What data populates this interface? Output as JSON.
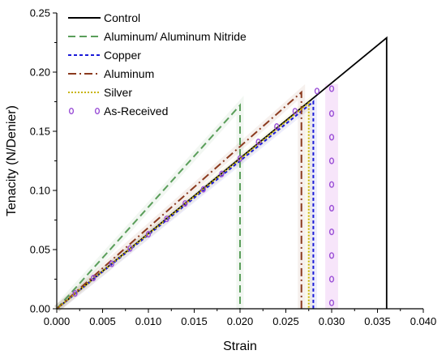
{
  "chart_data": {
    "type": "line",
    "title": "",
    "xlabel": "Strain",
    "ylabel": "Tenacity (N/Denier)",
    "xlim": [
      0,
      0.04
    ],
    "ylim": [
      0,
      0.25
    ],
    "xticks": [
      "0.000",
      "0.005",
      "0.010",
      "0.015",
      "0.020",
      "0.025",
      "0.030",
      "0.035",
      "0.040"
    ],
    "yticks": [
      "0.00",
      "0.05",
      "0.10",
      "0.15",
      "0.20",
      "0.25"
    ],
    "grid": false,
    "legend_position": "top-left",
    "series": [
      {
        "name": "Control",
        "color": "#000000",
        "dash": "solid",
        "points": [
          [
            0,
            0
          ],
          [
            0.036,
            0.229
          ],
          [
            0.036,
            0
          ]
        ]
      },
      {
        "name": "Aluminum/ Aluminum Nitride",
        "color": "#5a9e5a",
        "dash": "dash",
        "points": [
          [
            0,
            0
          ],
          [
            0.02,
            0.172
          ],
          [
            0.02,
            0
          ]
        ]
      },
      {
        "name": "Copper",
        "color": "#1a1ad8",
        "dash": "shortdash",
        "points": [
          [
            0,
            0
          ],
          [
            0.028,
            0.175
          ],
          [
            0.028,
            0
          ]
        ]
      },
      {
        "name": "Aluminum",
        "color": "#8b3a1e",
        "dash": "dashdot",
        "points": [
          [
            0,
            0
          ],
          [
            0.0267,
            0.183
          ],
          [
            0.0267,
            0
          ]
        ]
      },
      {
        "name": "Silver",
        "color": "#c8b400",
        "dash": "dot",
        "points": [
          [
            0,
            0
          ],
          [
            0.0275,
            0.174
          ],
          [
            0.0275,
            0
          ]
        ]
      },
      {
        "name": "As-Received",
        "color": "#9a4fd6",
        "dash": "marker",
        "points": [
          [
            0.002,
            0.013
          ],
          [
            0.004,
            0.026
          ],
          [
            0.006,
            0.038
          ],
          [
            0.008,
            0.051
          ],
          [
            0.01,
            0.063
          ],
          [
            0.012,
            0.076
          ],
          [
            0.014,
            0.089
          ],
          [
            0.016,
            0.101
          ],
          [
            0.018,
            0.114
          ],
          [
            0.02,
            0.127
          ],
          [
            0.022,
            0.141
          ],
          [
            0.024,
            0.154
          ],
          [
            0.026,
            0.167
          ],
          [
            0.0284,
            0.184
          ],
          [
            0.03,
            0.186
          ],
          [
            0.03,
            0.165
          ],
          [
            0.03,
            0.145
          ],
          [
            0.03,
            0.125
          ],
          [
            0.03,
            0.105
          ],
          [
            0.03,
            0.085
          ],
          [
            0.03,
            0.065
          ],
          [
            0.03,
            0.045
          ],
          [
            0.03,
            0.025
          ],
          [
            0.03,
            0.005
          ]
        ]
      }
    ]
  }
}
